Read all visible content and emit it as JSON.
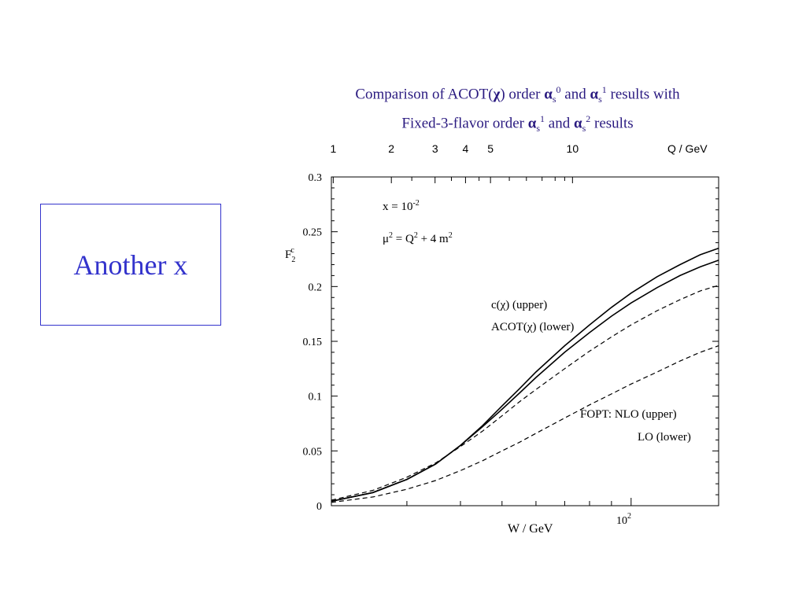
{
  "slide": {
    "label": "Another x",
    "title_line1": "Comparison of ACOT(χ) order αs0 and αs1 results with",
    "title_line2": "Fixed-3-flavor order αs1 and αs2 results",
    "colors": {
      "title": "#2a1a80",
      "label": "#3333cc",
      "box_border": "#3333cc"
    }
  },
  "chart_data": {
    "type": "line",
    "title": "Comparison of ACOT(χ) order αs0 and αs1 results with Fixed-3-flavor order αs1 and αs2 results",
    "xlabel": "W / GeV",
    "ylabel": "F2c",
    "x_scale": "log",
    "xlim": [
      20,
      160
    ],
    "ylim": [
      0,
      0.3
    ],
    "y_ticks": [
      "0",
      "0.05",
      "0.1",
      "0.15",
      "0.2",
      "0.25",
      "0.3"
    ],
    "x_tick_label": {
      "value": 100,
      "text": "10^2"
    },
    "top_axis": {
      "label": "Q / GeV",
      "ticks": [
        {
          "text": "1",
          "W": 20.2
        },
        {
          "text": "2",
          "W": 27.6
        },
        {
          "text": "3",
          "W": 34.9
        },
        {
          "text": "4",
          "W": 41.1
        },
        {
          "text": "5",
          "W": 47.0
        },
        {
          "text": "10",
          "W": 73.0
        }
      ]
    },
    "annotations": [
      {
        "text": "x = 10^-2"
      },
      {
        "text": "μ² = Q² + 4 m²"
      },
      {
        "text": "c(χ) (upper)"
      },
      {
        "text": "ACOT(χ) (lower)"
      },
      {
        "text": "FOPT: NLO (upper)"
      },
      {
        "text": "LO (lower)"
      }
    ],
    "series": [
      {
        "name": "c(χ) (upper)",
        "style": "solid",
        "x": [
          20,
          25,
          30,
          35,
          40,
          45,
          50,
          55,
          60,
          70,
          80,
          90,
          100,
          115,
          130,
          145,
          160
        ],
        "values": [
          0.004,
          0.012,
          0.024,
          0.038,
          0.055,
          0.073,
          0.091,
          0.107,
          0.122,
          0.146,
          0.165,
          0.181,
          0.194,
          0.209,
          0.22,
          0.229,
          0.235
        ]
      },
      {
        "name": "ACOT(χ) (lower)",
        "style": "solid",
        "x": [
          20,
          25,
          30,
          35,
          40,
          45,
          50,
          55,
          60,
          70,
          80,
          90,
          100,
          115,
          130,
          145,
          160
        ],
        "values": [
          0.004,
          0.012,
          0.024,
          0.038,
          0.055,
          0.072,
          0.088,
          0.103,
          0.117,
          0.14,
          0.158,
          0.173,
          0.185,
          0.199,
          0.21,
          0.218,
          0.224
        ]
      },
      {
        "name": "FOPT: NLO (upper)",
        "style": "dashed",
        "x": [
          20,
          25,
          30,
          35,
          40,
          45,
          50,
          55,
          60,
          70,
          80,
          90,
          100,
          115,
          130,
          145,
          160
        ],
        "values": [
          0.005,
          0.014,
          0.026,
          0.039,
          0.054,
          0.068,
          0.082,
          0.095,
          0.106,
          0.125,
          0.141,
          0.154,
          0.165,
          0.178,
          0.188,
          0.196,
          0.201
        ]
      },
      {
        "name": "LO (lower)",
        "style": "dashed",
        "x": [
          20,
          25,
          30,
          35,
          40,
          45,
          50,
          55,
          60,
          70,
          80,
          90,
          100,
          115,
          130,
          145,
          160
        ],
        "values": [
          0.003,
          0.008,
          0.015,
          0.023,
          0.032,
          0.041,
          0.05,
          0.058,
          0.066,
          0.08,
          0.092,
          0.102,
          0.111,
          0.122,
          0.132,
          0.14,
          0.146
        ]
      }
    ]
  }
}
